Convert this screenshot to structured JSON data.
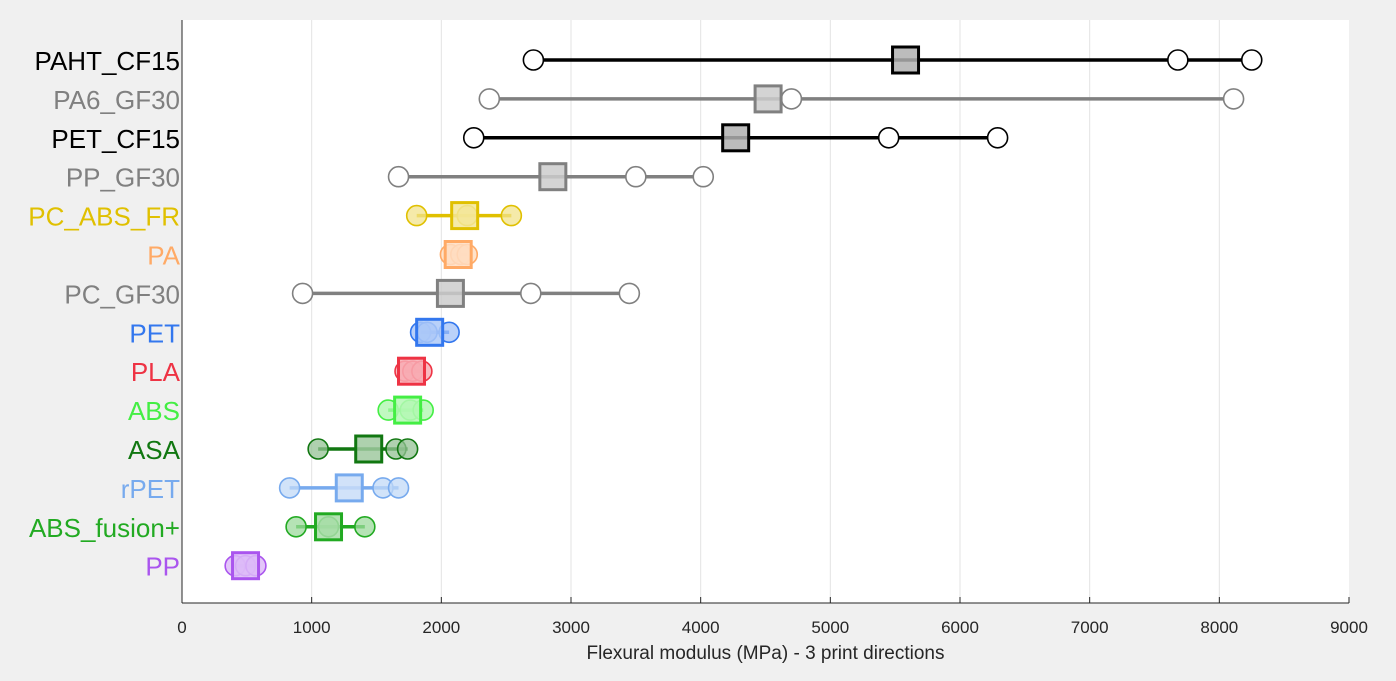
{
  "chart_data": {
    "type": "scatter",
    "xlabel": "Flexural modulus (MPa) - 3 print directions",
    "xlim": [
      0,
      9000
    ],
    "xticks": [
      0,
      1000,
      2000,
      3000,
      4000,
      5000,
      6000,
      7000,
      8000,
      9000
    ],
    "grid": "vertical",
    "series": [
      {
        "name": "PAHT_CF15",
        "color": "#000000",
        "mean": 5580,
        "points": [
          2710,
          7680,
          8250
        ]
      },
      {
        "name": "PA6_GF30",
        "color": "#808080",
        "mean": 4520,
        "points": [
          2370,
          4700,
          8110
        ]
      },
      {
        "name": "PET_CF15",
        "color": "#000000",
        "mean": 4270,
        "points": [
          2250,
          5450,
          6290
        ]
      },
      {
        "name": "PP_GF30",
        "color": "#808080",
        "mean": 2860,
        "points": [
          1670,
          3500,
          4020
        ]
      },
      {
        "name": "PC_ABS_FR",
        "color": "#e0c000",
        "mean": 2180,
        "points": [
          1810,
          2200,
          2540
        ]
      },
      {
        "name": "PA",
        "color": "#ffaa66",
        "mean": 2130,
        "points": [
          2070,
          2150,
          2200
        ]
      },
      {
        "name": "PC_GF30",
        "color": "#808080",
        "mean": 2070,
        "points": [
          930,
          2690,
          3450
        ]
      },
      {
        "name": "PET",
        "color": "#3377ee",
        "mean": 1910,
        "points": [
          1840,
          1890,
          2060
        ]
      },
      {
        "name": "PLA",
        "color": "#ee3344",
        "mean": 1770,
        "points": [
          1720,
          1780,
          1850
        ]
      },
      {
        "name": "ABS",
        "color": "#44ee44",
        "mean": 1740,
        "points": [
          1590,
          1760,
          1860
        ]
      },
      {
        "name": "ASA",
        "color": "#117711",
        "mean": 1440,
        "points": [
          1050,
          1650,
          1740
        ]
      },
      {
        "name": "rPET",
        "color": "#77aaee",
        "mean": 1290,
        "points": [
          830,
          1550,
          1670
        ]
      },
      {
        "name": "ABS_fusion+",
        "color": "#22aa22",
        "mean": 1130,
        "points": [
          880,
          1130,
          1410
        ]
      },
      {
        "name": "PP",
        "color": "#aa55ee",
        "mean": 490,
        "points": [
          410,
          490,
          570
        ]
      }
    ]
  }
}
